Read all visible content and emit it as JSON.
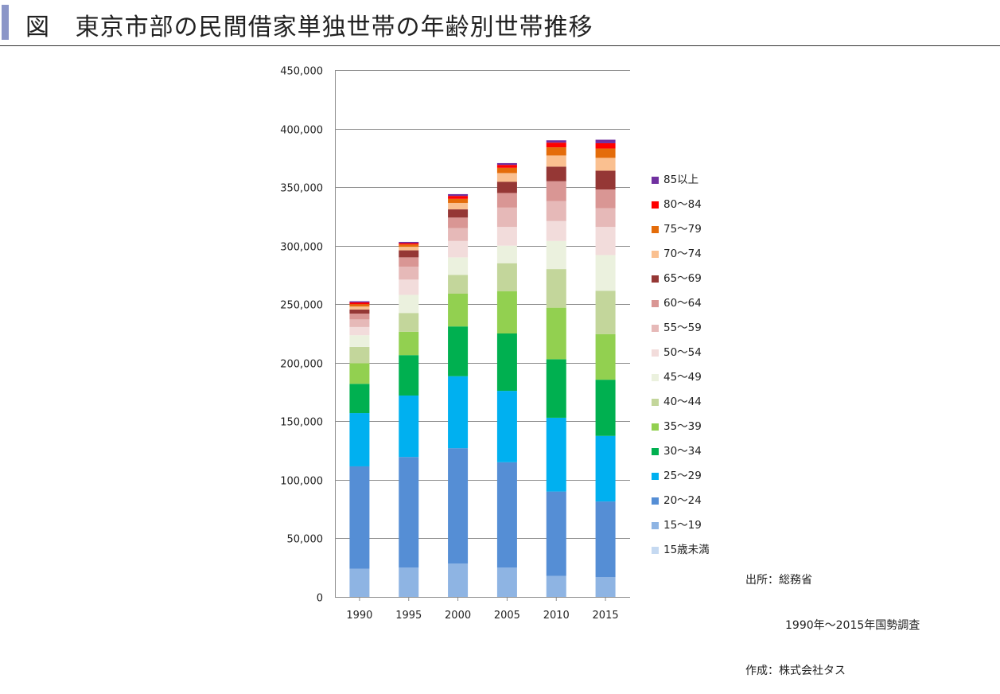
{
  "title": {
    "prefix": "図",
    "text": "東京市部の民間借家単独世帯の年齢別世帯推移"
  },
  "source_note": {
    "line1": "出所：総務省",
    "line2": "1990年～2015年国勢調査",
    "line3": "作成：株式会社タス"
  },
  "chart_data": {
    "type": "bar",
    "stacked": true,
    "categories": [
      "1990",
      "1995",
      "2000",
      "2005",
      "2010",
      "2015"
    ],
    "ylim": [
      0,
      450000
    ],
    "yticks": [
      0,
      50000,
      100000,
      150000,
      200000,
      250000,
      300000,
      350000,
      400000,
      450000
    ],
    "ytick_labels": [
      "0",
      "50,000",
      "100,000",
      "150,000",
      "200,000",
      "250,000",
      "300,000",
      "350,000",
      "400,000",
      "450,000"
    ],
    "grid": true,
    "legend_position": "right",
    "series": [
      {
        "name": "15歳未満",
        "color": "#c5d9f1",
        "values": [
          0,
          0,
          0,
          0,
          0,
          0
        ]
      },
      {
        "name": "15～19",
        "color": "#8eb4e3",
        "values": [
          24000,
          25000,
          28500,
          25000,
          18000,
          17000
        ]
      },
      {
        "name": "20～24",
        "color": "#558ed5",
        "values": [
          87500,
          94500,
          98500,
          90000,
          72000,
          64500
        ]
      },
      {
        "name": "25～29",
        "color": "#00b0f0",
        "values": [
          45500,
          52500,
          61500,
          61000,
          63000,
          56000
        ]
      },
      {
        "name": "30～34",
        "color": "#00b050",
        "values": [
          25000,
          34500,
          42500,
          49000,
          50000,
          48000
        ]
      },
      {
        "name": "35～39",
        "color": "#92d050",
        "values": [
          17500,
          20000,
          28000,
          36000,
          44000,
          39000
        ]
      },
      {
        "name": "40～44",
        "color": "#c3d69b",
        "values": [
          14000,
          16000,
          16000,
          24000,
          33000,
          37000
        ]
      },
      {
        "name": "45～49",
        "color": "#ebf1de",
        "values": [
          10000,
          15500,
          15000,
          15000,
          24000,
          30500
        ]
      },
      {
        "name": "50～54",
        "color": "#f2dcdb",
        "values": [
          7000,
          13000,
          14000,
          16000,
          17000,
          24000
        ]
      },
      {
        "name": "55～59",
        "color": "#e6b9b8",
        "values": [
          6500,
          11000,
          11000,
          16500,
          17000,
          16000
        ]
      },
      {
        "name": "60～64",
        "color": "#d99694",
        "values": [
          5000,
          8000,
          9000,
          12500,
          17000,
          16000
        ]
      },
      {
        "name": "65～69",
        "color": "#953735",
        "values": [
          3500,
          6000,
          7000,
          9500,
          12500,
          16000
        ]
      },
      {
        "name": "70～74",
        "color": "#fac090",
        "values": [
          2500,
          3000,
          5500,
          7500,
          9500,
          11000
        ]
      },
      {
        "name": "75～79",
        "color": "#e46c0a",
        "values": [
          2000,
          2000,
          3500,
          4500,
          7000,
          8000
        ]
      },
      {
        "name": "80～84",
        "color": "#ff0000",
        "values": [
          1500,
          1200,
          2500,
          2500,
          4000,
          4500
        ]
      },
      {
        "name": "85以上",
        "color": "#7030a0",
        "values": [
          1000,
          1000,
          1500,
          1500,
          2000,
          3000
        ]
      }
    ]
  }
}
